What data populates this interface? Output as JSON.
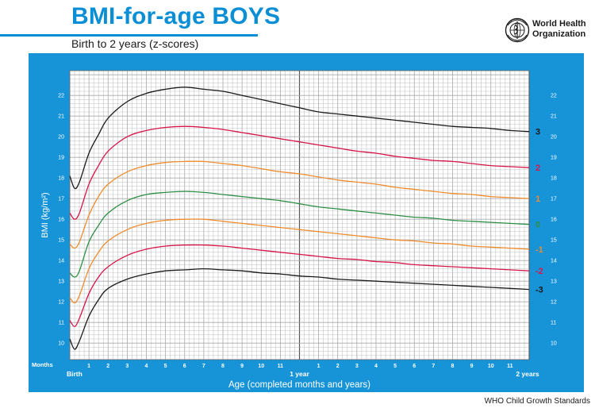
{
  "header": {
    "title": "BMI-for-age BOYS",
    "subtitle": "Birth to 2 years (z-scores)"
  },
  "logo": {
    "name_line1": "World Health",
    "name_line2": "Organization",
    "icon": "who-emblem-icon"
  },
  "footer": {
    "source": "WHO Child Growth Standards"
  },
  "colors": {
    "frame": "#1793d8",
    "grid": "#a9a9a9",
    "z3": "#1a1a1a",
    "z2": "#d8154a",
    "z1": "#f08c2c",
    "z0": "#2d8f45"
  },
  "chart_data": {
    "type": "line",
    "title": "BMI-for-age BOYS",
    "subtitle": "Birth to 2 years (z-scores)",
    "xlabel": "Age (completed months and years)",
    "ylabel": "BMI (kg/m²)",
    "x_unit_label": "Months",
    "x_unit": "months",
    "xlim": [
      0,
      24
    ],
    "ylim": [
      9.2,
      23.2
    ],
    "y_ticks": [
      10,
      11,
      12,
      13,
      14,
      15,
      16,
      17,
      18,
      19,
      20,
      21,
      22
    ],
    "x_tick_labels": [
      "Birth",
      "1",
      "2",
      "3",
      "4",
      "5",
      "6",
      "7",
      "8",
      "9",
      "10",
      "11",
      "1 year",
      "1",
      "2",
      "3",
      "4",
      "5",
      "6",
      "7",
      "8",
      "9",
      "10",
      "11",
      "2 years"
    ],
    "grid": true,
    "x": [
      0,
      0.25,
      0.5,
      1,
      1.5,
      2,
      3,
      4,
      5,
      6,
      7,
      8,
      9,
      10,
      11,
      12,
      13,
      14,
      15,
      16,
      17,
      18,
      19,
      20,
      21,
      22,
      23,
      24
    ],
    "series": [
      {
        "name": "3",
        "values": [
          18.1,
          17.5,
          17.8,
          19.2,
          20.1,
          20.9,
          21.7,
          22.1,
          22.3,
          22.4,
          22.3,
          22.2,
          22.0,
          21.8,
          21.6,
          21.4,
          21.2,
          21.1,
          21.0,
          20.9,
          20.8,
          20.7,
          20.6,
          20.5,
          20.45,
          20.4,
          20.3,
          20.25
        ]
      },
      {
        "name": "2",
        "values": [
          16.3,
          16.0,
          16.3,
          17.7,
          18.6,
          19.3,
          20.0,
          20.3,
          20.45,
          20.5,
          20.45,
          20.35,
          20.2,
          20.05,
          19.9,
          19.75,
          19.6,
          19.45,
          19.3,
          19.2,
          19.05,
          18.95,
          18.85,
          18.8,
          18.7,
          18.6,
          18.55,
          18.5
        ]
      },
      {
        "name": "1",
        "values": [
          14.8,
          14.6,
          14.9,
          16.2,
          17.1,
          17.7,
          18.3,
          18.6,
          18.75,
          18.8,
          18.8,
          18.7,
          18.6,
          18.45,
          18.3,
          18.2,
          18.05,
          17.9,
          17.8,
          17.7,
          17.55,
          17.45,
          17.35,
          17.25,
          17.2,
          17.1,
          17.05,
          17.0
        ]
      },
      {
        "name": "0",
        "values": [
          13.4,
          13.2,
          13.5,
          14.9,
          15.7,
          16.3,
          16.9,
          17.2,
          17.3,
          17.35,
          17.3,
          17.2,
          17.1,
          17.0,
          16.9,
          16.75,
          16.6,
          16.5,
          16.4,
          16.3,
          16.2,
          16.1,
          16.05,
          15.95,
          15.9,
          15.85,
          15.8,
          15.75
        ]
      },
      {
        "name": "-1",
        "values": [
          12.2,
          11.95,
          12.3,
          13.6,
          14.4,
          14.95,
          15.5,
          15.8,
          15.95,
          16.0,
          16.0,
          15.9,
          15.8,
          15.7,
          15.6,
          15.5,
          15.4,
          15.3,
          15.2,
          15.1,
          15.0,
          14.95,
          14.85,
          14.8,
          14.7,
          14.65,
          14.6,
          14.55
        ]
      },
      {
        "name": "-2",
        "values": [
          11.1,
          10.8,
          11.2,
          12.4,
          13.2,
          13.7,
          14.25,
          14.55,
          14.7,
          14.75,
          14.75,
          14.7,
          14.6,
          14.5,
          14.4,
          14.3,
          14.2,
          14.1,
          14.05,
          13.95,
          13.9,
          13.8,
          13.75,
          13.7,
          13.65,
          13.6,
          13.55,
          13.5
        ]
      },
      {
        "name": "-3",
        "values": [
          10.2,
          9.7,
          10.1,
          11.3,
          12.1,
          12.65,
          13.1,
          13.35,
          13.5,
          13.55,
          13.6,
          13.55,
          13.5,
          13.4,
          13.35,
          13.25,
          13.2,
          13.1,
          13.05,
          13.0,
          12.95,
          12.9,
          12.85,
          12.8,
          12.75,
          12.7,
          12.65,
          12.6
        ]
      }
    ]
  }
}
